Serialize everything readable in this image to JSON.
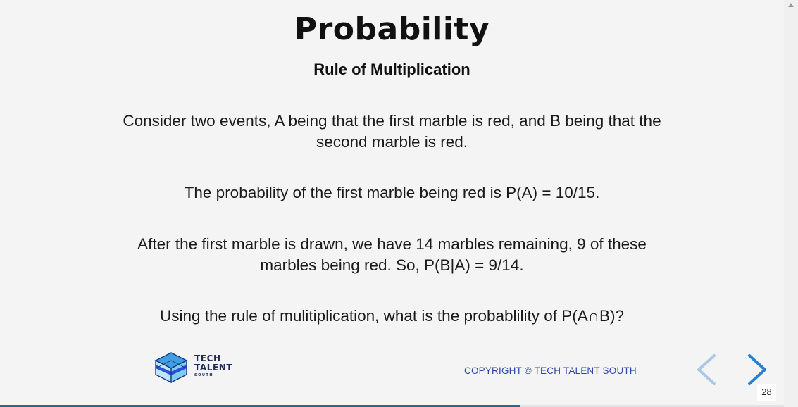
{
  "slide": {
    "title": "Probability",
    "subtitle": "Rule of Multiplication",
    "paragraphs": [
      "Consider two events, A being that the first marble is red, and B being that the second marble is red.",
      "The probability of the first marble being red is P(A) = 10/15.",
      "After the first marble is drawn, we have 14 marbles remaining, 9 of these marbles being red. So, P(B|A) = 9/14.",
      "Using the rule of mulitiplication, what is the probablility of P(A∩B)?"
    ]
  },
  "footer": {
    "logo": {
      "line1": "TECH",
      "line2": "TALENT",
      "line3": "SOUTH",
      "icon": "cube-logo-icon"
    },
    "copyright": "COPYRIGHT © TECH TALENT SOUTH",
    "slide_number": "28"
  },
  "navigation": {
    "prev_icon": "chevron-left-icon",
    "next_icon": "chevron-right-icon",
    "prev_color": "#a9c8e8",
    "next_color": "#2a7fd0"
  },
  "progress": {
    "fraction": 0.663,
    "color": "#1f6b8c"
  },
  "colors": {
    "background": "#f3f4f3",
    "accent": "#2e43a6"
  }
}
